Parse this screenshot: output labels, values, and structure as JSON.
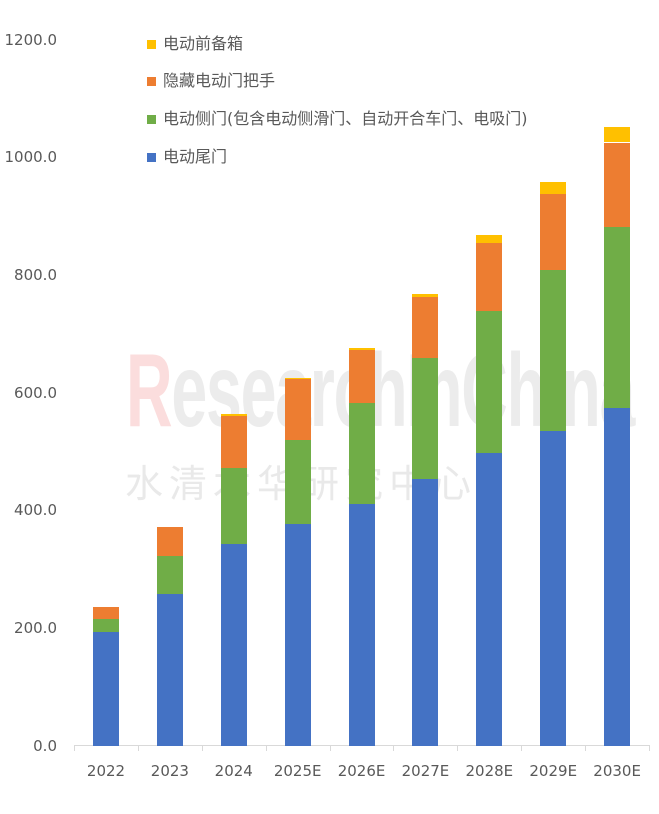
{
  "chart_data": {
    "type": "bar",
    "stacked": true,
    "title": "",
    "xlabel": "",
    "ylabel": "",
    "ylim": [
      0,
      1200
    ],
    "yticks": [
      "0.0",
      "200.0",
      "400.0",
      "600.0",
      "800.0",
      "1000.0",
      "1200.0"
    ],
    "grid": false,
    "legend_position": "top-left inside",
    "categories": [
      "2022",
      "2023",
      "2024",
      "2025E",
      "2026E",
      "2027E",
      "2028E",
      "2029E",
      "2030E"
    ],
    "series": [
      {
        "name": "电动尾门",
        "color": "#4472C4",
        "values": [
          193,
          257,
          342,
          376,
          410,
          453,
          498,
          535,
          574
        ]
      },
      {
        "name": "电动侧门(包含电动侧滑门、自动开合车门、电吸门)",
        "color": "#70AD47",
        "values": [
          22,
          65,
          130,
          144,
          173,
          206,
          240,
          274,
          308
        ]
      },
      {
        "name": "隐藏电动门把手",
        "color": "#ED7D31",
        "values": [
          21,
          50,
          89,
          103,
          89,
          103,
          117,
          129,
          143
        ]
      },
      {
        "name": "电动前备箱",
        "color": "#FFC000",
        "values": [
          0,
          0,
          2,
          2,
          3,
          6,
          13,
          20,
          27
        ]
      }
    ],
    "totals": [
      236,
      372,
      563,
      625,
      675,
      768,
      868,
      958,
      1052
    ]
  },
  "legend": [
    {
      "label": "电动前备箱",
      "color": "#FFC000"
    },
    {
      "label": "隐藏电动门把手",
      "color": "#ED7D31"
    },
    {
      "label": "电动侧门(包含电动侧滑门、自动开合车门、电吸门)",
      "color": "#70AD47"
    },
    {
      "label": "电动尾门",
      "color": "#4472C4"
    }
  ],
  "watermark": {
    "en_first": "R",
    "en_rest": "esearchInChina",
    "cn": "水清木华研究中心"
  }
}
